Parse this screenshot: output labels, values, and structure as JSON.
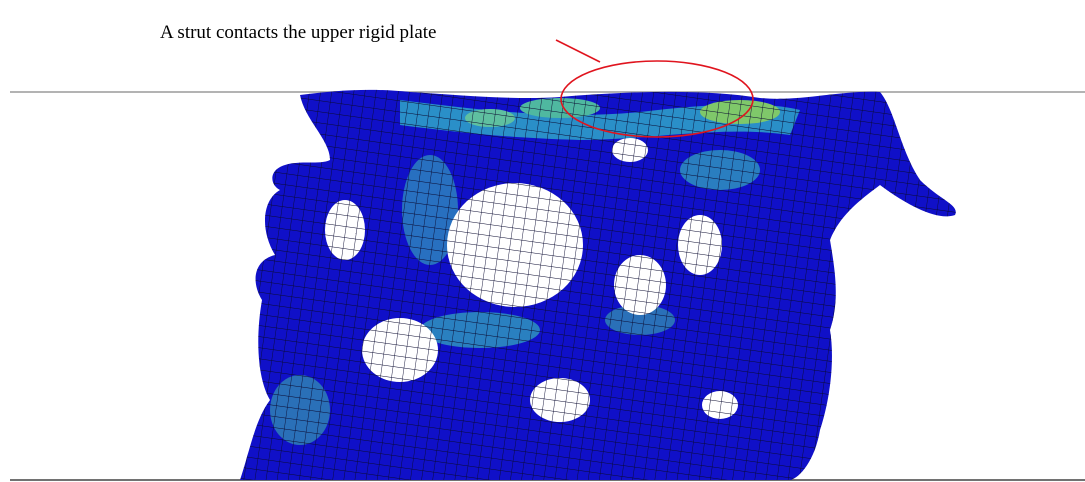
{
  "annotation": "A strut contacts the upper rigid plate"
}
